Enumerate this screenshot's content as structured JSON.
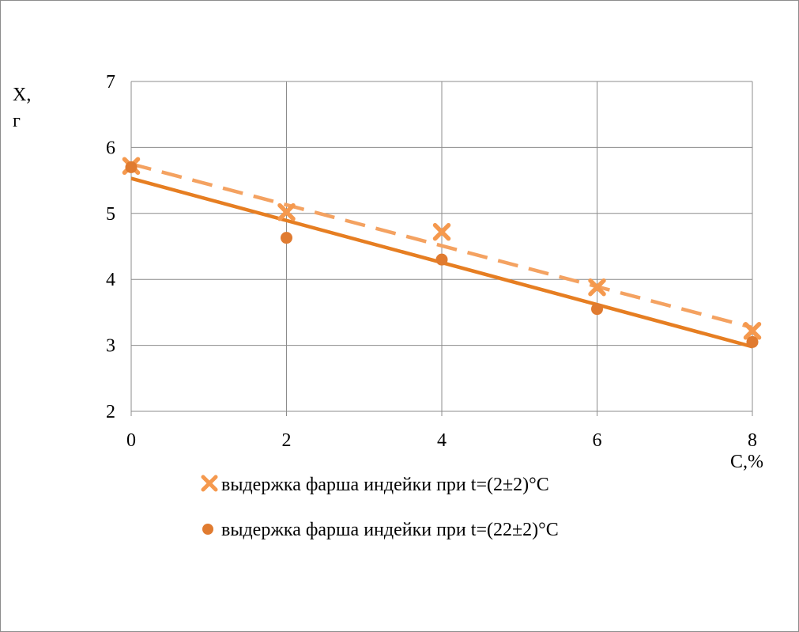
{
  "chart_data": {
    "type": "scatter",
    "xlabel": "C,%",
    "ylabel": [
      "X,",
      "г"
    ],
    "xlim": [
      0,
      8
    ],
    "ylim": [
      2,
      7
    ],
    "xticks": [
      0,
      2,
      4,
      6,
      8
    ],
    "yticks": [
      2,
      3,
      4,
      5,
      6,
      7
    ],
    "grid": true,
    "legend_position": "bottom",
    "series": [
      {
        "name": "выдержка фарша индейки при t=(2±2)°С",
        "marker": "x",
        "color": "#F4A261",
        "marker_color": "#F5994E",
        "x": [
          0,
          2,
          4,
          6,
          8
        ],
        "y": [
          5.72,
          5.02,
          4.72,
          3.88,
          3.22
        ],
        "trendline": {
          "style": "dashed",
          "start": [
            0,
            5.75
          ],
          "end": [
            8,
            3.27
          ]
        }
      },
      {
        "name": "выдержка фарша индейки при t=(22±2)°С",
        "marker": "circle",
        "color": "#E67E22",
        "marker_color": "#E07B30",
        "x": [
          0,
          2,
          4,
          6,
          8
        ],
        "y": [
          5.7,
          4.63,
          4.3,
          3.55,
          3.05
        ],
        "trendline": {
          "style": "solid",
          "start": [
            0,
            5.53
          ],
          "end": [
            8,
            2.98
          ]
        }
      }
    ]
  }
}
